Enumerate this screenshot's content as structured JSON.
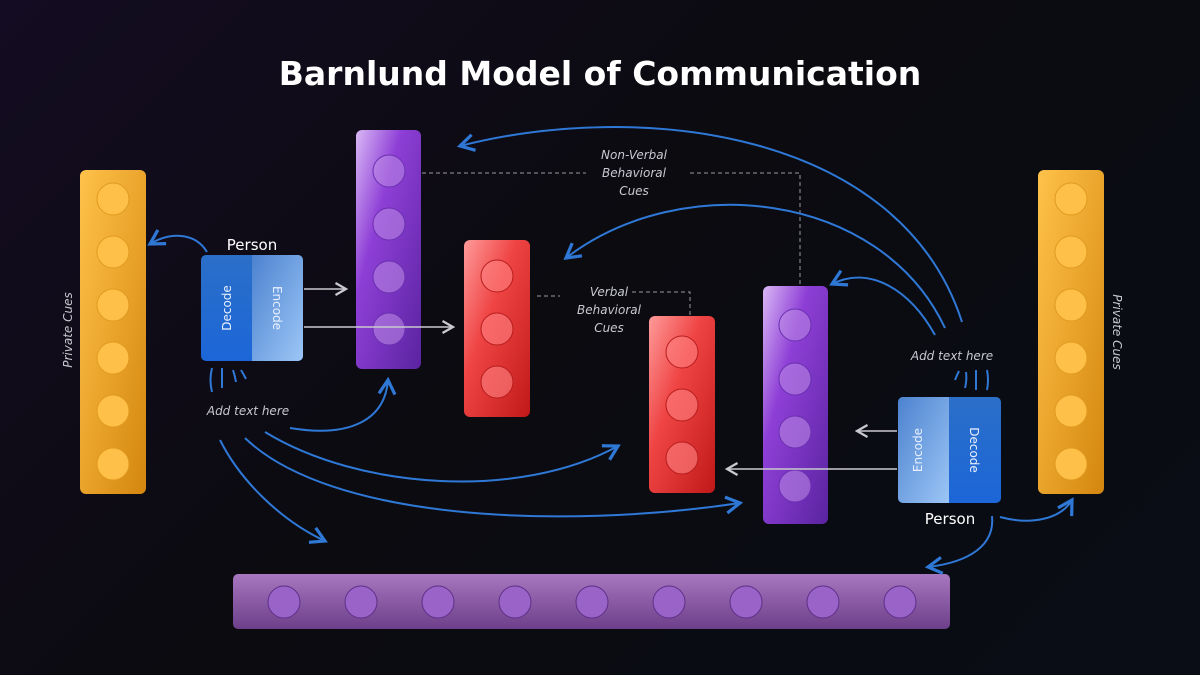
{
  "title": "Barnlund Model of Communication",
  "private_cues_left": "Private Cues",
  "private_cues_right": "Private Cues",
  "person_left": {
    "label": "Person",
    "decode": "Decode",
    "encode": "Encode",
    "note": "Add text here"
  },
  "person_right": {
    "label": "Person",
    "encode": "Encode",
    "decode": "Decode",
    "note": "Add text here"
  },
  "non_verbal": [
    "Non-Verbal",
    "Behavioral",
    "Cues"
  ],
  "verbal": [
    "Verbal",
    "Behavioral",
    "Cues"
  ],
  "colors": {
    "orange": "#f0a21e",
    "purple": "#8a3fd0",
    "red": "#e8393a",
    "blue": "#2a6fd0",
    "bottom_bar": "#8e5aa8",
    "arrow_blue": "#2f78d6"
  }
}
